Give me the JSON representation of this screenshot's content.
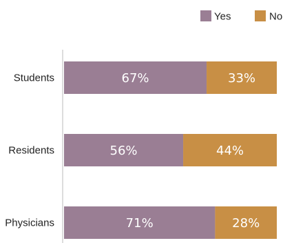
{
  "chart_data": {
    "type": "bar",
    "orientation": "horizontal",
    "stacked": true,
    "categories": [
      "Students",
      "Residents",
      "Physicians"
    ],
    "series": [
      {
        "name": "Yes",
        "values": [
          67,
          56,
          71
        ],
        "labels": [
          "67%",
          "56%",
          "71%"
        ],
        "color": "#9a7e94"
      },
      {
        "name": "No",
        "values": [
          33,
          44,
          28
        ],
        "labels": [
          "33%",
          "44%",
          "28%"
        ],
        "color": "#c88f45"
      }
    ],
    "xlim": [
      0,
      100
    ],
    "grid": false,
    "legend_position": "top-right",
    "axis_line_color": "#dddddd"
  }
}
